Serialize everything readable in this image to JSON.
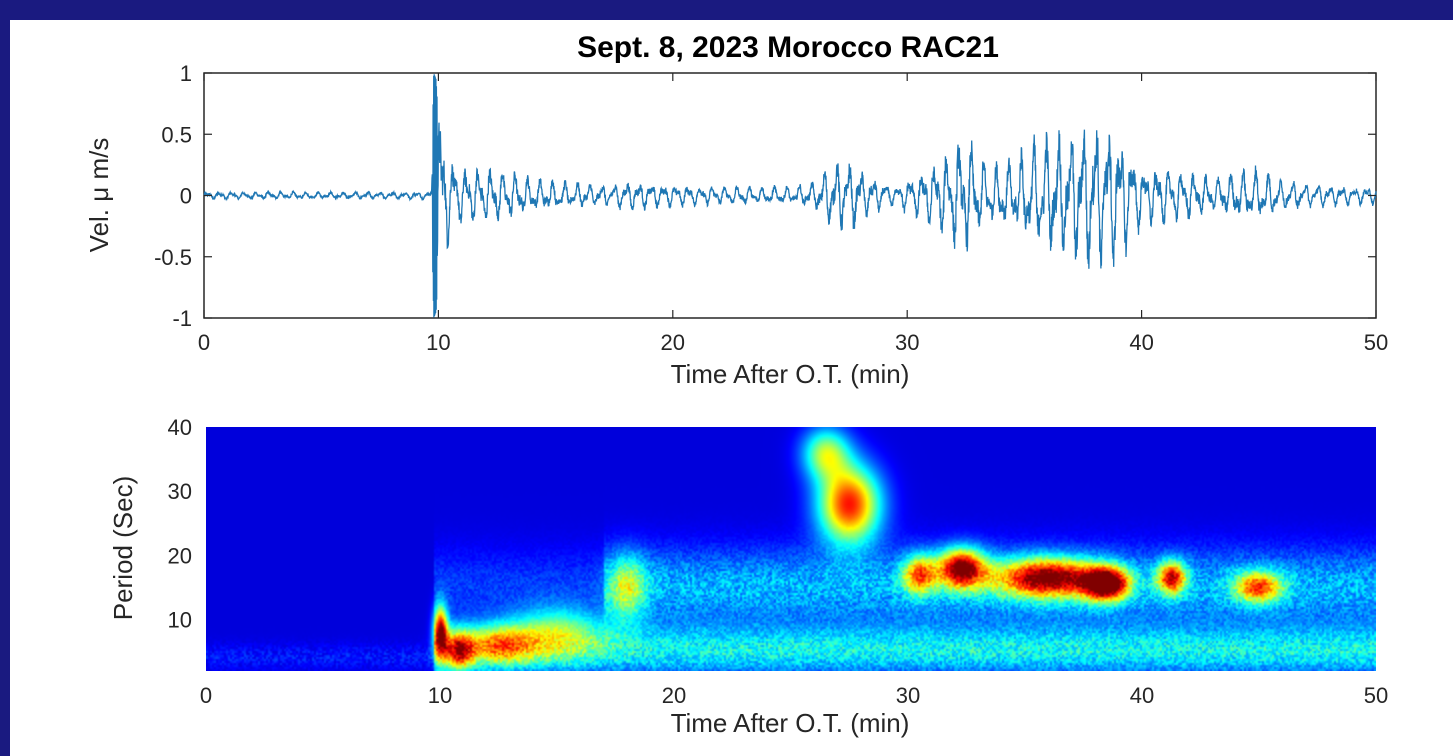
{
  "colors": {
    "page_border": "#1a1a80",
    "waveform": "#1f77b4",
    "spectrogram_background": "#00008f"
  },
  "chart_data": [
    {
      "type": "line",
      "title": "Sept. 8, 2023 Morocco RAC21",
      "xlabel": "Time After O.T. (min)",
      "ylabel": "Vel. μ m/s",
      "xlim": [
        0,
        50
      ],
      "ylim": [
        -1,
        1
      ],
      "xticks": [
        "0",
        "10",
        "20",
        "30",
        "40",
        "50"
      ],
      "yticks": [
        "1",
        "0.5",
        "0",
        "-0.5",
        "-1"
      ],
      "grid": false,
      "envelope": {
        "t": [
          0,
          9.7,
          9.8,
          9.9,
          10.0,
          10.2,
          10.5,
          11,
          12,
          13,
          14,
          15,
          17,
          18,
          20,
          22,
          24,
          25,
          26,
          26.8,
          27.5,
          28.5,
          29.5,
          30,
          31,
          32,
          32.6,
          33.5,
          34.5,
          35.5,
          36.5,
          37.5,
          38.3,
          39,
          40,
          41,
          42,
          43,
          44,
          45,
          46,
          47,
          48,
          49,
          50
        ],
        "amp": [
          0.02,
          0.02,
          1.0,
          0.95,
          0.6,
          0.35,
          0.22,
          0.16,
          0.15,
          0.14,
          0.09,
          0.08,
          0.06,
          0.08,
          0.06,
          0.05,
          0.05,
          0.05,
          0.07,
          0.18,
          0.2,
          0.1,
          0.05,
          0.1,
          0.16,
          0.28,
          0.31,
          0.15,
          0.2,
          0.3,
          0.34,
          0.4,
          0.43,
          0.36,
          0.16,
          0.15,
          0.14,
          0.1,
          0.13,
          0.15,
          0.08,
          0.07,
          0.06,
          0.05,
          0.05
        ]
      }
    },
    {
      "type": "heatmap",
      "title": "",
      "xlabel": "Time After O.T. (min)",
      "ylabel": "Period (Sec)",
      "xlim": [
        0,
        50
      ],
      "ylim": [
        2,
        40
      ],
      "xticks": [
        "0",
        "10",
        "20",
        "30",
        "40",
        "50"
      ],
      "yticks": [
        "40",
        "30",
        "20",
        "10"
      ],
      "colormap": "jet",
      "hotspots": [
        {
          "t": 10.0,
          "period": 8,
          "intensity": 0.85,
          "dt": 0.3,
          "dp": 4
        },
        {
          "t": 10.8,
          "period": 5,
          "intensity": 0.6,
          "dt": 0.6,
          "dp": 3
        },
        {
          "t": 12.5,
          "period": 6,
          "intensity": 0.45,
          "dt": 1.5,
          "dp": 3
        },
        {
          "t": 15,
          "period": 8,
          "intensity": 0.35,
          "dt": 2.0,
          "dp": 4
        },
        {
          "t": 18,
          "period": 15,
          "intensity": 0.35,
          "dt": 0.8,
          "dp": 5
        },
        {
          "t": 27.5,
          "period": 28,
          "intensity": 0.85,
          "dt": 1.3,
          "dp": 6
        },
        {
          "t": 26.5,
          "period": 36,
          "intensity": 0.5,
          "dt": 1.0,
          "dp": 4
        },
        {
          "t": 32.3,
          "period": 18,
          "intensity": 0.9,
          "dt": 1.0,
          "dp": 3
        },
        {
          "t": 36,
          "period": 16.5,
          "intensity": 0.88,
          "dt": 2.2,
          "dp": 3
        },
        {
          "t": 38.5,
          "period": 15.5,
          "intensity": 1.0,
          "dt": 0.9,
          "dp": 2.5
        },
        {
          "t": 41.3,
          "period": 16.5,
          "intensity": 0.75,
          "dt": 0.6,
          "dp": 2.5
        },
        {
          "t": 45,
          "period": 15,
          "intensity": 0.6,
          "dt": 1.0,
          "dp": 2.5
        },
        {
          "t": 30.5,
          "period": 17,
          "intensity": 0.6,
          "dt": 0.7,
          "dp": 3
        }
      ]
    }
  ]
}
